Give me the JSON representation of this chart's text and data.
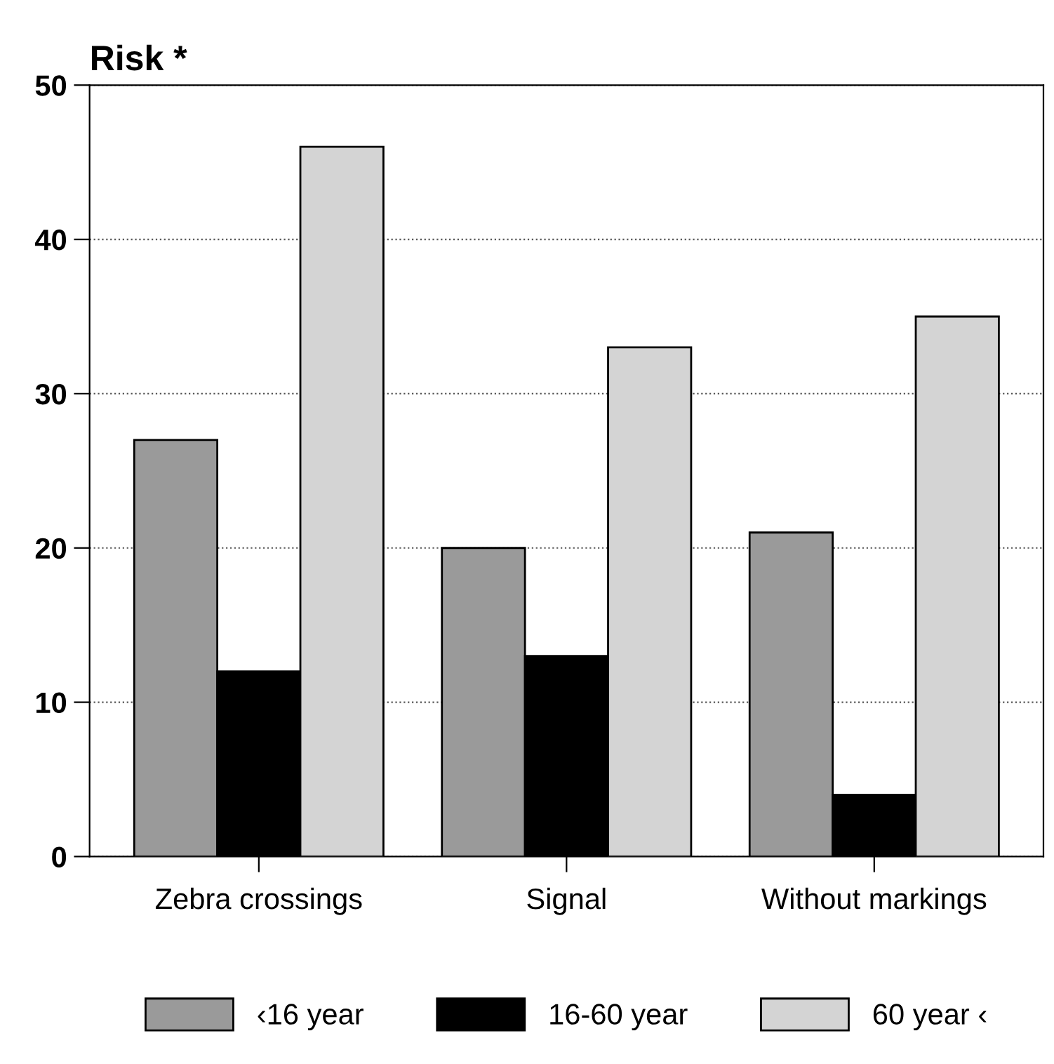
{
  "chart_data": {
    "type": "bar",
    "ylabel": "Risk *",
    "categories": [
      "Zebra crossings",
      "Signal",
      "Without markings"
    ],
    "series": [
      {
        "name": "‹16 year",
        "color": "#9a9a9a",
        "values": [
          27,
          20,
          21
        ]
      },
      {
        "name": "16-60 year",
        "color": "#000000",
        "values": [
          12,
          13,
          4
        ]
      },
      {
        "name": "60 year ‹",
        "color": "#d4d4d4",
        "values": [
          46,
          33,
          35
        ]
      }
    ],
    "ylim": [
      0,
      50
    ],
    "yticks": [
      0,
      10,
      20,
      30,
      40,
      50
    ],
    "grid": "y",
    "legend": "bottom"
  }
}
